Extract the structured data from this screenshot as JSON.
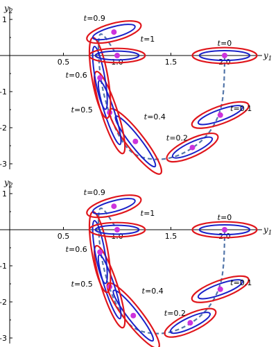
{
  "colors": {
    "outer": "#e0161c",
    "inner": "#1a22c8",
    "point": "#cc33dd",
    "path": "#5577aa"
  },
  "chart_data": [
    {
      "type": "scatter",
      "xlabel": "y1",
      "ylabel": "y2",
      "xlim": [
        0.0,
        2.45
      ],
      "ylim": [
        -3.2,
        1.25
      ],
      "xticks": [
        "0.5",
        "1.0",
        "1.5",
        "2.0"
      ],
      "yticks": [
        "1",
        "-1",
        "-2",
        "-3"
      ],
      "points": [
        {
          "label": "t=0",
          "t_prefix": "t",
          "t_value": "=0",
          "x": 2.0,
          "y": 0.0,
          "a": 0.3,
          "b": 0.1,
          "angle": 0
        },
        {
          "label": "t=0.1",
          "t_prefix": "t",
          "t_value": "=0.1",
          "x": 1.96,
          "y": -1.65,
          "a": 0.28,
          "b": 0.11,
          "angle": -20
        },
        {
          "label": "t=0.2",
          "t_prefix": "t",
          "t_value": "=0.2",
          "x": 1.7,
          "y": -2.55,
          "a": 0.26,
          "b": 0.11,
          "angle": -25
        },
        {
          "label": "t=0.4",
          "t_prefix": "t",
          "t_value": "=0.4",
          "x": 1.17,
          "y": -2.38,
          "a": 0.38,
          "b": 0.11,
          "angle": 52
        },
        {
          "label": "t=0.5",
          "t_prefix": "t",
          "t_value": "=0.5",
          "x": 0.93,
          "y": -1.58,
          "a": 0.4,
          "b": 0.1,
          "angle": 72
        },
        {
          "label": "t=0.6",
          "t_prefix": "t",
          "t_value": "=0.6",
          "x": 0.84,
          "y": -0.62,
          "a": 0.38,
          "b": 0.1,
          "angle": 80
        },
        {
          "label": "t=0.9",
          "t_prefix": "t",
          "t_value": "=0.9",
          "x": 0.97,
          "y": 0.65,
          "a": 0.26,
          "b": 0.11,
          "angle": -15
        },
        {
          "label": "t=1",
          "t_prefix": "t",
          "t_value": "=1",
          "x": 1.0,
          "y": 0.0,
          "a": 0.26,
          "b": 0.09,
          "angle": 0
        }
      ],
      "path": [
        [
          2.0,
          0.0
        ],
        [
          2.0,
          -0.8
        ],
        [
          1.96,
          -1.65
        ],
        [
          1.8,
          -2.4
        ],
        [
          1.5,
          -2.9
        ],
        [
          1.2,
          -2.85
        ],
        [
          1.05,
          -2.45
        ],
        [
          0.92,
          -1.6
        ],
        [
          0.84,
          -0.62
        ],
        [
          0.82,
          0.4
        ],
        [
          0.85,
          0.7
        ],
        [
          1.0,
          0.0
        ]
      ]
    },
    {
      "type": "scatter",
      "xlabel": "y1",
      "ylabel": "y2",
      "xlim": [
        0.0,
        2.45
      ],
      "ylim": [
        -3.2,
        1.25
      ],
      "xticks": [
        "0.5",
        "1.0",
        "1.5",
        "2.0"
      ],
      "yticks": [
        "1",
        "-1",
        "-2",
        "-3"
      ],
      "points": [
        {
          "label": "t=0",
          "t_prefix": "t",
          "t_value": "=0",
          "x": 2.0,
          "y": 0.0,
          "a": 0.3,
          "b": 0.1,
          "angle": 0
        },
        {
          "label": "t=0.1",
          "t_prefix": "t",
          "t_value": "=0.1",
          "x": 1.96,
          "y": -1.65,
          "a": 0.28,
          "b": 0.11,
          "angle": -20
        },
        {
          "label": "t=0.2",
          "t_prefix": "t",
          "t_value": "=0.2",
          "x": 1.68,
          "y": -2.58,
          "a": 0.26,
          "b": 0.11,
          "angle": -25
        },
        {
          "label": "t=0.4",
          "t_prefix": "t",
          "t_value": "=0.4",
          "x": 1.15,
          "y": -2.38,
          "a": 0.38,
          "b": 0.11,
          "angle": 52
        },
        {
          "label": "t=0.5",
          "t_prefix": "t",
          "t_value": "=0.5",
          "x": 0.93,
          "y": -1.58,
          "a": 0.4,
          "b": 0.1,
          "angle": 72
        },
        {
          "label": "t=0.6",
          "t_prefix": "t",
          "t_value": "=0.6",
          "x": 0.84,
          "y": -0.62,
          "a": 0.38,
          "b": 0.1,
          "angle": 80
        },
        {
          "label": "t=0.9",
          "t_prefix": "t",
          "t_value": "=0.9",
          "x": 0.97,
          "y": 0.65,
          "a": 0.26,
          "b": 0.11,
          "angle": -15
        },
        {
          "label": "t=1",
          "t_prefix": "t",
          "t_value": "=1",
          "x": 1.0,
          "y": 0.0,
          "a": 0.26,
          "b": 0.09,
          "angle": 0
        }
      ],
      "path": [
        [
          2.0,
          0.0
        ],
        [
          2.0,
          -0.8
        ],
        [
          1.96,
          -1.65
        ],
        [
          1.8,
          -2.4
        ],
        [
          1.5,
          -2.9
        ],
        [
          1.2,
          -2.85
        ],
        [
          1.05,
          -2.45
        ],
        [
          0.92,
          -1.6
        ],
        [
          0.84,
          -0.62
        ],
        [
          0.82,
          0.4
        ],
        [
          0.85,
          0.7
        ],
        [
          1.0,
          0.0
        ]
      ]
    }
  ]
}
